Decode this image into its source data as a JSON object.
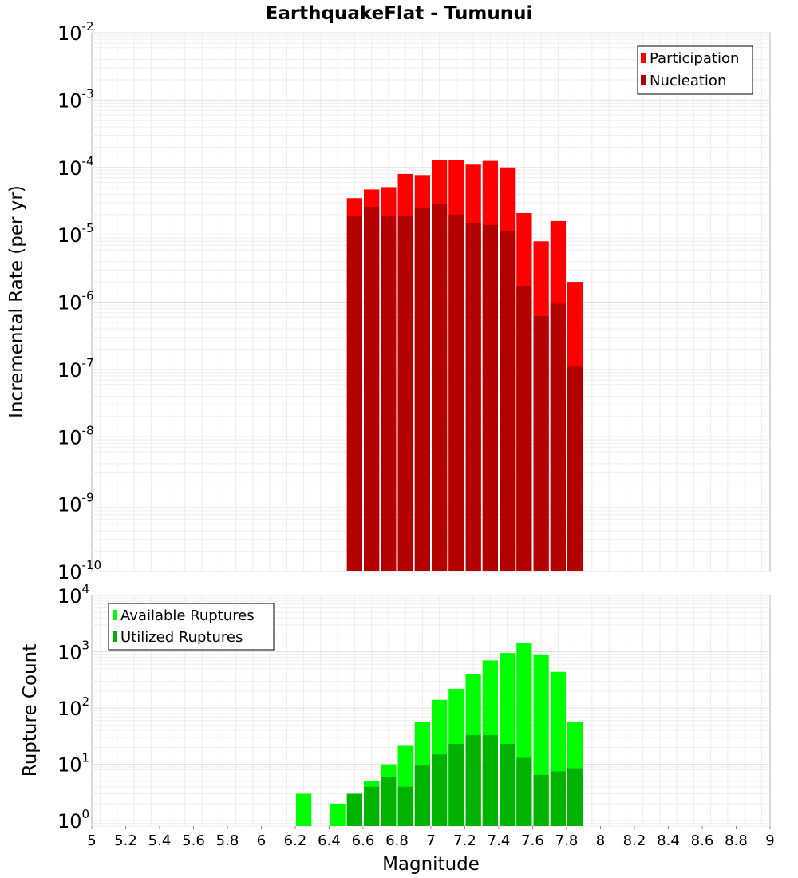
{
  "title": "EarthquakeFlat - Tumunui",
  "chart_data": [
    {
      "type": "bar",
      "panel": "top",
      "ylabel": "Incremental Rate (per yr)",
      "yscale": "log",
      "ylim": [
        1e-10,
        0.01
      ],
      "ytick_base": "10",
      "ytick_exponents": [
        "-10",
        "-9",
        "-8",
        "-7",
        "-6",
        "-5",
        "-4",
        "-3",
        "-2"
      ],
      "xlim": [
        5,
        9
      ],
      "bar_width": 0.1,
      "grid": true,
      "legend": {
        "position": "top-right",
        "entries": [
          "Participation",
          "Nucleation"
        ]
      },
      "x": [
        6.55,
        6.65,
        6.75,
        6.85,
        6.95,
        7.05,
        7.15,
        7.25,
        7.35,
        7.45,
        7.55,
        7.65,
        7.75,
        7.85
      ],
      "series": [
        {
          "name": "Participation",
          "color": "#ff0000",
          "values": [
            3.5e-05,
            4.7e-05,
            5.1e-05,
            8e-05,
            7.7e-05,
            0.00013,
            0.000128,
            0.00011,
            0.000125,
            0.0001,
            2.1e-05,
            8e-06,
            1.6e-05,
            2e-06
          ]
        },
        {
          "name": "Nucleation",
          "color": "#b30000",
          "values": [
            1.9e-05,
            2.6e-05,
            1.9e-05,
            1.9e-05,
            2.5e-05,
            2.9e-05,
            2e-05,
            1.5e-05,
            1.4e-05,
            1.15e-05,
            1.75e-06,
            6.2e-07,
            9.5e-07,
            1.1e-07
          ]
        }
      ]
    },
    {
      "type": "bar",
      "panel": "bottom",
      "xlabel": "Magnitude",
      "ylabel": "Rupture Count",
      "yscale": "log",
      "ylim": [
        0.8,
        10000
      ],
      "ytick_base": "10",
      "ytick_exponents": [
        "0",
        "1",
        "2",
        "3",
        "4"
      ],
      "xlim": [
        5,
        9
      ],
      "xticks": [
        "5",
        "5.2",
        "5.4",
        "5.6",
        "5.8",
        "6",
        "6.2",
        "6.4",
        "6.6",
        "6.8",
        "7",
        "7.2",
        "7.4",
        "7.6",
        "7.8",
        "8",
        "8.2",
        "8.4",
        "8.6",
        "8.8",
        "9"
      ],
      "bar_width": 0.1,
      "grid": true,
      "legend": {
        "position": "top-left",
        "entries": [
          "Available Ruptures",
          "Utilized Ruptures"
        ]
      },
      "x": [
        6.25,
        6.45,
        6.55,
        6.65,
        6.75,
        6.85,
        6.95,
        7.05,
        7.15,
        7.25,
        7.35,
        7.45,
        7.55,
        7.65,
        7.75,
        7.85
      ],
      "series": [
        {
          "name": "Available Ruptures",
          "color": "#00ff00",
          "values": [
            3,
            2,
            3,
            5,
            10,
            22,
            57,
            140,
            220,
            400,
            700,
            950,
            1450,
            900,
            440,
            57
          ]
        },
        {
          "name": "Utilized Ruptures",
          "color": "#00b300",
          "values": [
            0,
            0,
            3,
            4,
            6,
            4,
            9.5,
            15,
            23,
            33,
            33,
            23,
            13,
            6.5,
            7.5,
            8.5
          ]
        }
      ]
    }
  ]
}
